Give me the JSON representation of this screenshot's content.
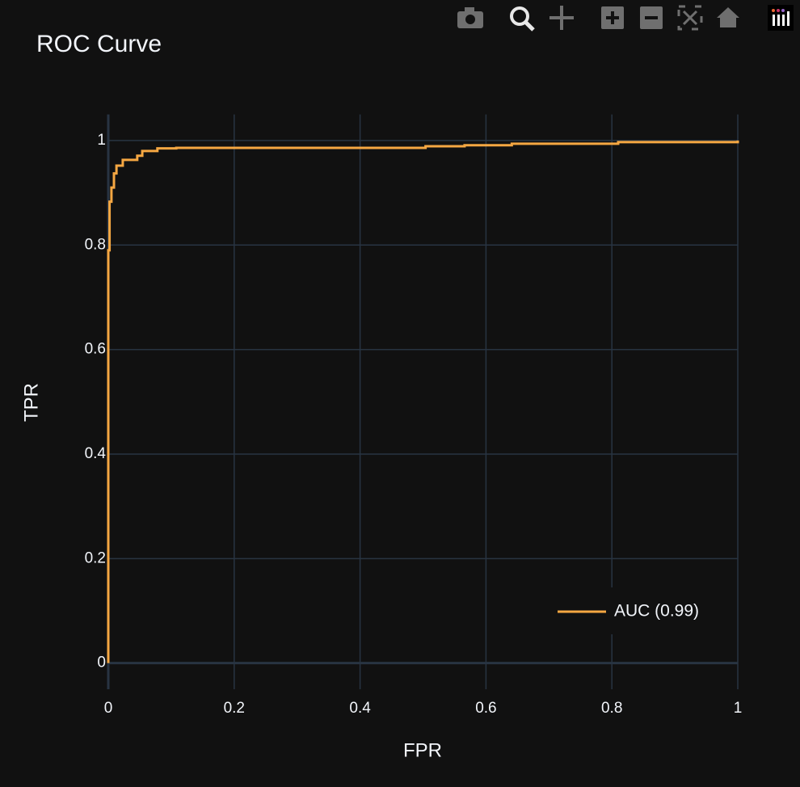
{
  "chart_data": {
    "type": "line",
    "title": "ROC Curve",
    "x_label": "FPR",
    "y_label": "TPR",
    "x": [
      0,
      0,
      0.002,
      0.005,
      0.009,
      0.013,
      0.023,
      0.046,
      0.054,
      0.078,
      0.108,
      0.502,
      0.504,
      0.566,
      0.641,
      0.81,
      1
    ],
    "series": [
      {
        "name": "AUC (0.99)",
        "color": "#f5a742",
        "values": [
          0,
          0.79,
          0.883,
          0.91,
          0.937,
          0.952,
          0.963,
          0.971,
          0.98,
          0.985,
          0.986,
          0.986,
          0.989,
          0.991,
          0.994,
          0.997,
          1
        ]
      }
    ],
    "xlim": [
      0,
      1
    ],
    "ylim": [
      -0.05,
      1.05
    ],
    "xticks": [
      0,
      0.2,
      0.4,
      0.6,
      0.8,
      1
    ],
    "yticks": [
      0,
      0.2,
      0.4,
      0.6,
      0.8,
      1
    ],
    "grid": true,
    "legend": "lower right",
    "line_shape": "step"
  }
}
